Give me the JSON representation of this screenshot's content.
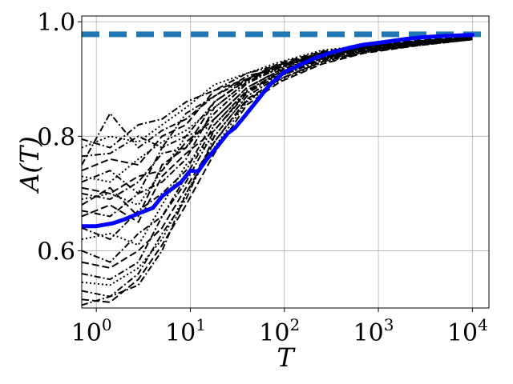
{
  "chart_data": {
    "type": "line",
    "xscale": "log",
    "xlim": [
      0.7,
      15000
    ],
    "ylim": [
      0.5,
      1.01
    ],
    "grid": true,
    "xlabel": "T",
    "ylabel": "A(T)",
    "x_ticks": [
      {
        "base": "10",
        "exp": "0",
        "value": 1
      },
      {
        "base": "10",
        "exp": "1",
        "value": 10
      },
      {
        "base": "10",
        "exp": "2",
        "value": 100
      },
      {
        "base": "10",
        "exp": "3",
        "value": 1000
      },
      {
        "base": "10",
        "exp": "4",
        "value": 10000
      }
    ],
    "y_ticks": [
      {
        "label": "0.6",
        "value": 0.6
      },
      {
        "label": "0.8",
        "value": 0.8
      },
      {
        "label": "1.0",
        "value": 1.0
      }
    ],
    "reference_line": {
      "y": 0.978,
      "color": "#1f77b4",
      "style": "dashed"
    },
    "mean_series": {
      "color": "#0000ff",
      "x": [
        0.7,
        1,
        1.5,
        2,
        3,
        4,
        5,
        6,
        8,
        10,
        12,
        15,
        20,
        25,
        30,
        40,
        50,
        70,
        100,
        150,
        200,
        300,
        500,
        700,
        1000,
        2000,
        3000,
        5000,
        10000
      ],
      "y": [
        0.643,
        0.643,
        0.648,
        0.655,
        0.667,
        0.675,
        0.695,
        0.705,
        0.72,
        0.74,
        0.738,
        0.76,
        0.785,
        0.805,
        0.815,
        0.84,
        0.86,
        0.89,
        0.912,
        0.925,
        0.935,
        0.945,
        0.955,
        0.96,
        0.963,
        0.97,
        0.973,
        0.975,
        0.977
      ]
    },
    "runs_color": "#000000",
    "runs": [
      {
        "style": "dashdot",
        "y0": 0.795,
        "y": [
          0.795,
          0.78,
          0.82,
          0.83,
          0.86,
          0.88,
          0.91,
          0.925,
          0.945,
          0.955,
          0.965,
          0.972
        ]
      },
      {
        "style": "dotted",
        "y0": 0.78,
        "y": [
          0.78,
          0.8,
          0.79,
          0.82,
          0.85,
          0.89,
          0.91,
          0.93,
          0.95,
          0.958,
          0.966,
          0.973
        ]
      },
      {
        "style": "dashdot",
        "y0": 0.765,
        "y": [
          0.765,
          0.77,
          0.8,
          0.78,
          0.84,
          0.87,
          0.905,
          0.92,
          0.942,
          0.953,
          0.963,
          0.971
        ]
      },
      {
        "style": "dashed",
        "y0": 0.74,
        "y": [
          0.74,
          0.76,
          0.75,
          0.8,
          0.82,
          0.88,
          0.9,
          0.928,
          0.948,
          0.957,
          0.967,
          0.974
        ]
      },
      {
        "style": "dotted",
        "y0": 0.73,
        "y": [
          0.73,
          0.72,
          0.76,
          0.79,
          0.81,
          0.85,
          0.895,
          0.918,
          0.94,
          0.952,
          0.962,
          0.97
        ]
      },
      {
        "style": "dashdot",
        "y0": 0.72,
        "y": [
          0.72,
          0.74,
          0.7,
          0.78,
          0.8,
          0.86,
          0.9,
          0.924,
          0.944,
          0.956,
          0.965,
          0.972
        ]
      },
      {
        "style": "dashed",
        "y0": 0.71,
        "y": [
          0.71,
          0.7,
          0.73,
          0.74,
          0.79,
          0.83,
          0.885,
          0.915,
          0.938,
          0.951,
          0.962,
          0.971
        ]
      },
      {
        "style": "dashdot",
        "y0": 0.7,
        "y": [
          0.7,
          0.69,
          0.72,
          0.77,
          0.78,
          0.84,
          0.892,
          0.92,
          0.943,
          0.954,
          0.964,
          0.972
        ]
      },
      {
        "style": "dotted",
        "y0": 0.69,
        "y": [
          0.69,
          0.7,
          0.68,
          0.74,
          0.8,
          0.82,
          0.88,
          0.912,
          0.936,
          0.95,
          0.961,
          0.97
        ]
      },
      {
        "style": "dashdot",
        "y0": 0.67,
        "y": [
          0.67,
          0.66,
          0.7,
          0.72,
          0.76,
          0.85,
          0.895,
          0.922,
          0.945,
          0.955,
          0.965,
          0.973
        ]
      },
      {
        "style": "dashed",
        "y0": 0.66,
        "y": [
          0.66,
          0.68,
          0.65,
          0.73,
          0.77,
          0.81,
          0.878,
          0.91,
          0.935,
          0.95,
          0.961,
          0.97
        ]
      },
      {
        "style": "dashdot",
        "y0": 0.64,
        "y": [
          0.64,
          0.62,
          0.67,
          0.7,
          0.74,
          0.83,
          0.885,
          0.916,
          0.94,
          0.953,
          0.963,
          0.971
        ]
      },
      {
        "style": "dotted",
        "y0": 0.62,
        "y": [
          0.62,
          0.63,
          0.61,
          0.68,
          0.75,
          0.8,
          0.87,
          0.905,
          0.932,
          0.948,
          0.96,
          0.97
        ]
      },
      {
        "style": "dashdot",
        "y0": 0.6,
        "y": [
          0.6,
          0.58,
          0.63,
          0.66,
          0.73,
          0.82,
          0.88,
          0.912,
          0.938,
          0.952,
          0.962,
          0.971
        ]
      },
      {
        "style": "dashed",
        "y0": 0.58,
        "y": [
          0.58,
          0.57,
          0.6,
          0.64,
          0.71,
          0.79,
          0.865,
          0.9,
          0.93,
          0.947,
          0.959,
          0.969
        ]
      },
      {
        "style": "dashdot",
        "y0": 0.56,
        "y": [
          0.56,
          0.55,
          0.58,
          0.66,
          0.72,
          0.81,
          0.875,
          0.908,
          0.935,
          0.95,
          0.961,
          0.97
        ]
      },
      {
        "style": "dotted",
        "y0": 0.545,
        "y": [
          0.545,
          0.54,
          0.57,
          0.62,
          0.7,
          0.78,
          0.86,
          0.898,
          0.928,
          0.946,
          0.958,
          0.969
        ]
      },
      {
        "style": "dashdot",
        "y0": 0.53,
        "y": [
          0.53,
          0.52,
          0.56,
          0.63,
          0.69,
          0.8,
          0.87,
          0.905,
          0.933,
          0.949,
          0.96,
          0.97
        ]
      },
      {
        "style": "dashed",
        "y0": 0.515,
        "y": [
          0.515,
          0.51,
          0.55,
          0.61,
          0.68,
          0.77,
          0.855,
          0.895,
          0.926,
          0.945,
          0.958,
          0.969
        ]
      },
      {
        "style": "dashdot",
        "y0": 0.505,
        "y": [
          0.505,
          0.52,
          0.54,
          0.6,
          0.7,
          0.79,
          0.862,
          0.9,
          0.93,
          0.947,
          0.959,
          0.969
        ]
      },
      {
        "style": "dashdot",
        "y0": 0.75,
        "y": [
          0.75,
          0.84,
          0.78,
          0.81,
          0.83,
          0.87,
          0.9,
          0.925,
          0.946,
          0.956,
          0.966,
          0.973
        ]
      },
      {
        "style": "dashed",
        "y0": 0.68,
        "y": [
          0.68,
          0.71,
          0.66,
          0.75,
          0.78,
          0.86,
          0.898,
          0.921,
          0.943,
          0.954,
          0.964,
          0.972
        ]
      }
    ],
    "run_x": [
      0.7,
      1.4,
      2.8,
      5,
      9,
      18,
      40,
      90,
      250,
      700,
      2500,
      10000
    ]
  }
}
